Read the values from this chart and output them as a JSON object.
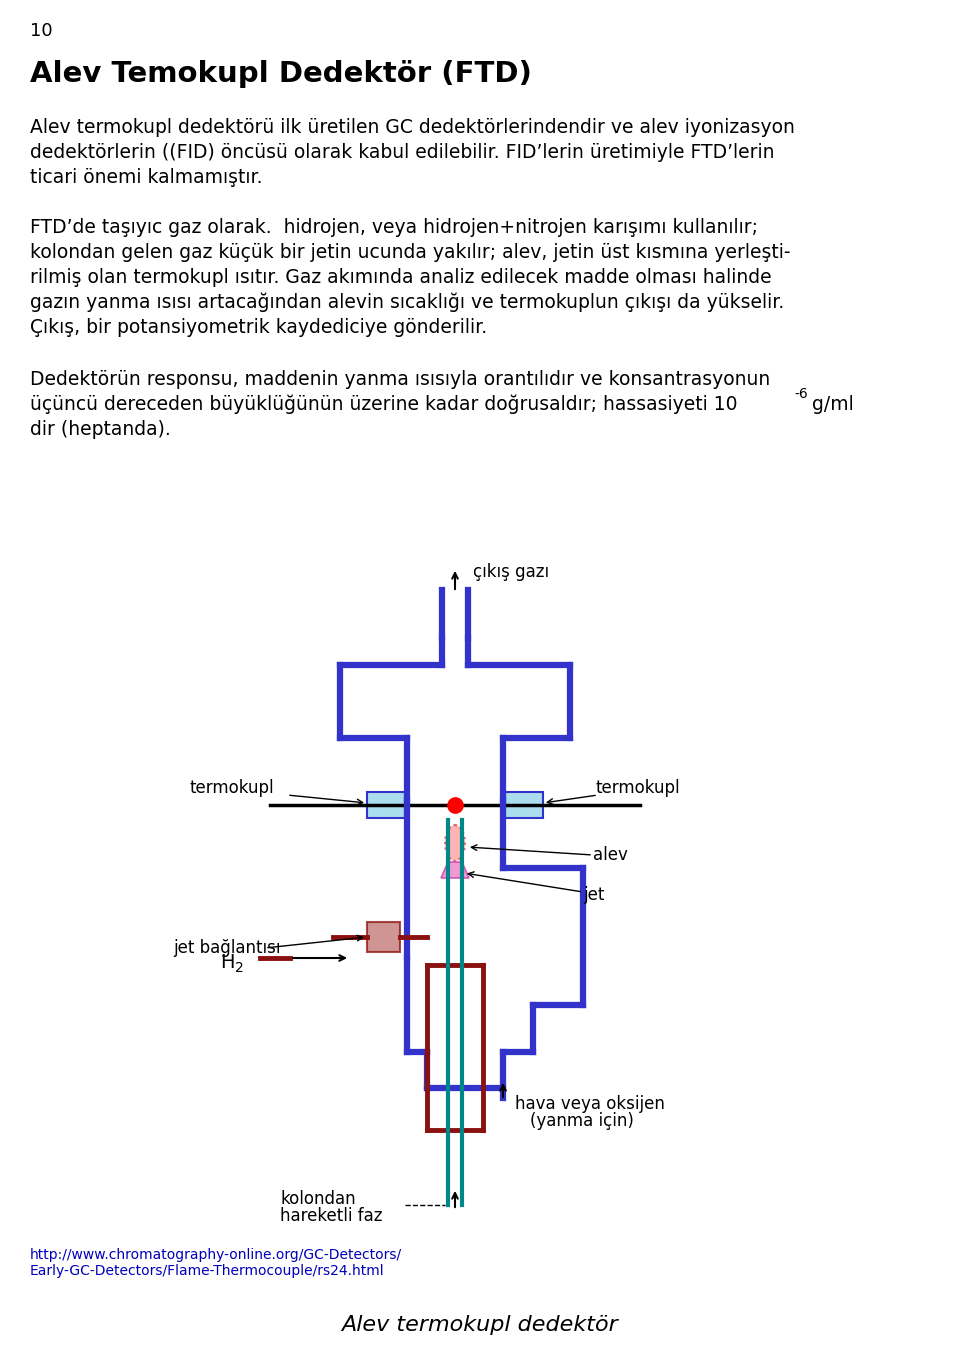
{
  "page_number": "10",
  "title": "Alev Temokupl Dedektör (FTD)",
  "para1_lines": [
    "Alev termokupl dedektörü ilk üretilen GC dedektörlerindendir ve alev iyonizasyon",
    "dedektörlerin ((FID) öncüsü olarak kabul edilebilir. FID’lerin üretimiyle FTD’lerin",
    "ticari önemi kalmamıştır."
  ],
  "para2_lines": [
    "FTD’de taşıyıc gaz olarak.  hidrojen, veya hidrojen+nitrojen karışımı kullanılır;",
    "kolondan gelen gaz küçük bir jetin ucunda yakılır; alev, jetin üst kısmına yerleşti-",
    "rilmiş olan termokupl ısıtır. Gaz akımında analiz edilecek madde olması halinde",
    "gazın yanma ısısı artacağından alevin sıcaklığı ve termokuplun çıkışı da yükselir.",
    "Çıkış, bir potansiyometrik kaydediciye gönderilir."
  ],
  "para3_line1": "Dedektörün responsu, maddenin yanma ısısıyla orantılıdır ve konsantrasyonun",
  "para3_line2": "üçüncü dereceden büyüklüğünün üzerine kadar doğrusaldır; hassasiyeti 10",
  "para3_sup": "-6",
  "para3_end": " g/ml",
  "para3_line3": "dir (heptanda).",
  "url_line1": "http://www.chromatography-online.org/GC-Detectors/",
  "url_line2": "Early-GC-Detectors/Flame-Thermocouple/rs24.html",
  "caption": "Alev termokupl dedektör",
  "label_cikis_gazi": "çıkış gazı",
  "label_termokupl_l": "termokupl",
  "label_termokupl_r": "termokupl",
  "label_alev": "alev",
  "label_jet": "jet",
  "label_jet_baglantisi": "jet bağlantısı",
  "label_h2": "H",
  "label_h2_sub": "2",
  "label_kolondan": "kolondan",
  "label_hareketli": "hareketli faz",
  "label_hava1": "hava veya oksijen",
  "label_hava2": "(yanma için)",
  "blue": "#3333CC",
  "dark_red": "#8B1010",
  "teal": "#008888",
  "light_blue": "#AADDEE",
  "black": "#000000",
  "url_color": "#0000BB"
}
